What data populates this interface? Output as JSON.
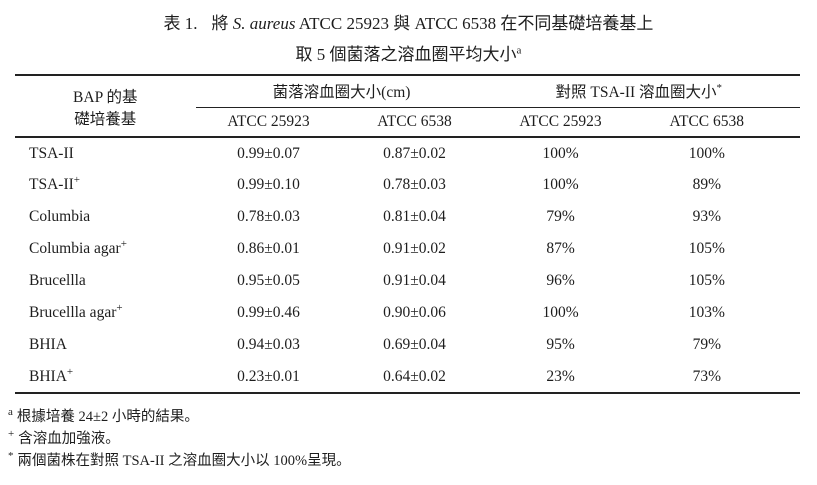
{
  "title": {
    "prefix": "表 1.",
    "line1_a": "將 ",
    "line1_italic": "S. aureus",
    "line1_b": " ATCC 25923 與 ATCC 6538 在不同基礎培養基上",
    "line2_text": "取 5 個菌落之溶血圈平均大小",
    "line2_sup": "a"
  },
  "table": {
    "col1_header_line1": "BAP 的基",
    "col1_header_line2": "礎培養基",
    "group1_header": "菌落溶血圈大小(cm)",
    "group2_header": "對照 TSA-II 溶血圈大小",
    "group2_sup": "*",
    "subheaders": [
      "ATCC 25923",
      "ATCC 6538",
      "ATCC 25923",
      "ATCC 6538"
    ],
    "rows": [
      {
        "label": "TSA-II",
        "label_sup": "",
        "values": [
          "0.99±0.07",
          "0.87±0.02",
          "100%",
          "100%"
        ]
      },
      {
        "label": "TSA-II",
        "label_sup": "+",
        "values": [
          "0.99±0.10",
          "0.78±0.03",
          "100%",
          "89%"
        ]
      },
      {
        "label": "Columbia",
        "label_sup": "",
        "values": [
          "0.78±0.03",
          "0.81±0.04",
          "79%",
          "93%"
        ]
      },
      {
        "label": "Columbia agar",
        "label_sup": "+",
        "values": [
          "0.86±0.01",
          "0.91±0.02",
          "87%",
          "105%"
        ]
      },
      {
        "label": "Brucellla",
        "label_sup": "",
        "values": [
          "0.95±0.05",
          "0.91±0.04",
          "96%",
          "105%"
        ]
      },
      {
        "label": "Brucellla agar",
        "label_sup": "+",
        "values": [
          "0.99±0.46",
          "0.90±0.06",
          "100%",
          "103%"
        ]
      },
      {
        "label": "BHIA",
        "label_sup": "",
        "values": [
          "0.94±0.03",
          "0.69±0.04",
          "95%",
          "79%"
        ]
      },
      {
        "label": "BHIA",
        "label_sup": "+",
        "values": [
          "0.23±0.01",
          "0.64±0.02",
          "23%",
          "73%"
        ]
      }
    ]
  },
  "footnotes": [
    {
      "symbol": "a",
      "text": "根據培養 24±2 小時的結果。"
    },
    {
      "symbol": "+",
      "text": "含溶血加強液。"
    },
    {
      "symbol": "*",
      "text": "兩個菌株在對照 TSA-II 之溶血圈大小以 100%呈現。"
    }
  ],
  "colors": {
    "text": "#1d1d1d",
    "rule": "#222222",
    "background": "#ffffff"
  }
}
